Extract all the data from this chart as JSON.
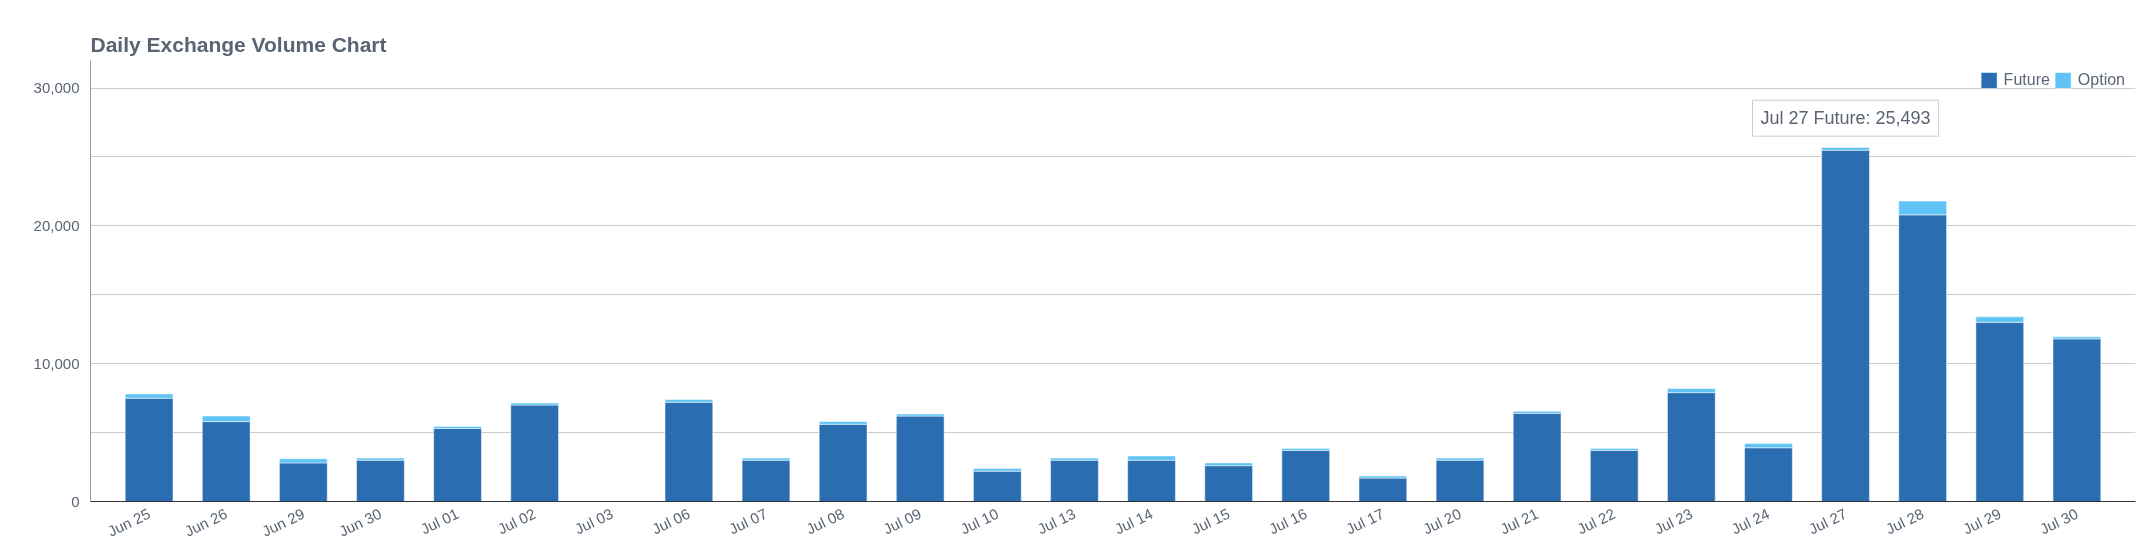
{
  "chart_data": {
    "type": "bar",
    "title": "Daily Exchange Volume Chart",
    "stacked": true,
    "categories": [
      "Jun 25",
      "Jun 26",
      "Jun 29",
      "Jun 30",
      "Jul 01",
      "Jul 02",
      "Jul 03",
      "Jul 06",
      "Jul 07",
      "Jul 08",
      "Jul 09",
      "Jul 10",
      "Jul 13",
      "Jul 14",
      "Jul 15",
      "Jul 16",
      "Jul 17",
      "Jul 20",
      "Jul 21",
      "Jul 22",
      "Jul 23",
      "Jul 24",
      "Jul 27",
      "Jul 28",
      "Jul 29",
      "Jul 30"
    ],
    "series": [
      {
        "name": "Future",
        "color": "#2a6db0",
        "values": [
          7500,
          5800,
          2800,
          3000,
          5300,
          7000,
          null,
          7200,
          3000,
          5600,
          6200,
          2200,
          3000,
          3000,
          2600,
          3700,
          1700,
          3000,
          6400,
          3700,
          7900,
          3900,
          25493,
          20800,
          13000,
          11800
        ]
      },
      {
        "name": "Option",
        "color": "#5fc3f5",
        "values": [
          300,
          400,
          300,
          150,
          150,
          150,
          null,
          200,
          150,
          200,
          150,
          200,
          150,
          300,
          200,
          150,
          150,
          150,
          150,
          150,
          300,
          300,
          200,
          1000,
          400,
          150
        ]
      }
    ],
    "ylim": [
      0,
      32000
    ],
    "yticks": [
      0,
      {
        "value": 5000,
        "label": null
      },
      {
        "value": 10000,
        "label": "10,000"
      },
      {
        "value": 15000,
        "label": null
      },
      {
        "value": 20000,
        "label": "20,000"
      },
      {
        "value": 25000,
        "label": null
      },
      {
        "value": 30000,
        "label": "30,000"
      }
    ],
    "grid": "y",
    "legend": "top right",
    "annotations": [
      {
        "text": "Jul 27 Future: 25,493",
        "x": "Jul 27",
        "y": 25493
      }
    ]
  }
}
